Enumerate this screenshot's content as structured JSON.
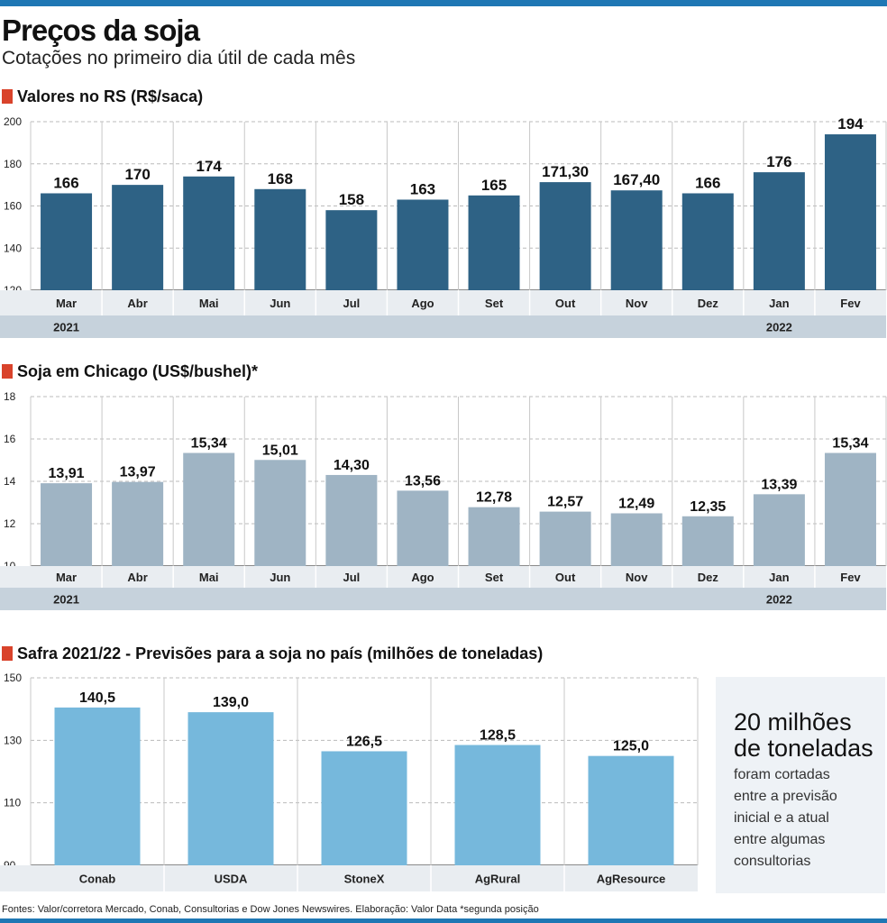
{
  "header": {
    "title": "Preços da soja",
    "subtitle": "Cotações no primeiro dia útil de cada mês"
  },
  "sections": {
    "rs": "Valores no RS (R$/saca)",
    "chicago": "Soja em Chicago (US$/bushel)*",
    "safra": "Safra 2021/22 - Previsões para a soja no país (milhões de toneladas)"
  },
  "colors": {
    "rs_bar": "#2e6285",
    "chicago_bar": "#9fb4c4",
    "safra_bar": "#76b8dc",
    "axis_band": "#e9edf1",
    "year_band": "#c6d2dc",
    "section_marker": "#d9432b",
    "top_rule": "#1f77b4"
  },
  "callout": {
    "headline_line1": "20 milhões",
    "headline_line2": "de toneladas",
    "body_lines": [
      "foram cortadas",
      "entre a previsão",
      "inicial e a atual",
      "entre algumas",
      "consultorias"
    ]
  },
  "footer": "Fontes: Valor/corretora Mercado, Conab, Consultorias e Dow Jones Newswires. Elaboração: Valor Data *segunda posição",
  "chart_data": [
    {
      "id": "rs",
      "type": "bar",
      "title": "Valores no RS (R$/saca)",
      "categories": [
        "Mar",
        "Abr",
        "Mai",
        "Jun",
        "Jul",
        "Ago",
        "Set",
        "Out",
        "Nov",
        "Dez",
        "Jan",
        "Fev"
      ],
      "values": [
        166,
        170,
        174,
        168,
        158,
        163,
        165,
        171.3,
        167.4,
        166,
        176,
        194
      ],
      "value_labels": [
        "166",
        "170",
        "174",
        "168",
        "158",
        "163",
        "165",
        "171,30",
        "167,40",
        "166",
        "176",
        "194"
      ],
      "years": [
        {
          "label": "2021",
          "under": "Mar"
        },
        {
          "label": "2022",
          "under": "Jan"
        }
      ],
      "ylim": [
        120,
        200
      ],
      "yticks": [
        120,
        140,
        160,
        180,
        200
      ],
      "grid": true
    },
    {
      "id": "chicago",
      "type": "bar",
      "title": "Soja em Chicago (US$/bushel)*",
      "categories": [
        "Mar",
        "Abr",
        "Mai",
        "Jun",
        "Jul",
        "Ago",
        "Set",
        "Out",
        "Nov",
        "Dez",
        "Jan",
        "Fev"
      ],
      "values": [
        13.91,
        13.97,
        15.34,
        15.01,
        14.3,
        13.56,
        12.78,
        12.57,
        12.49,
        12.35,
        13.39,
        15.34
      ],
      "value_labels": [
        "13,91",
        "13,97",
        "15,34",
        "15,01",
        "14,30",
        "13,56",
        "12,78",
        "12,57",
        "12,49",
        "12,35",
        "13,39",
        "15,34"
      ],
      "years": [
        {
          "label": "2021",
          "under": "Mar"
        },
        {
          "label": "2022",
          "under": "Jan"
        }
      ],
      "ylim": [
        10,
        18
      ],
      "yticks": [
        10,
        12,
        14,
        16,
        18
      ],
      "grid": true
    },
    {
      "id": "safra",
      "type": "bar",
      "title": "Safra 2021/22 - Previsões para a soja no país (milhões de toneladas)",
      "categories": [
        "Conab",
        "USDA",
        "StoneX",
        "AgRural",
        "AgResource"
      ],
      "values": [
        140.5,
        139.0,
        126.5,
        128.5,
        125.0
      ],
      "value_labels": [
        "140,5",
        "139,0",
        "126,5",
        "128,5",
        "125,0"
      ],
      "ylim": [
        90,
        150
      ],
      "yticks": [
        90,
        110,
        130,
        150
      ],
      "grid": true
    }
  ]
}
